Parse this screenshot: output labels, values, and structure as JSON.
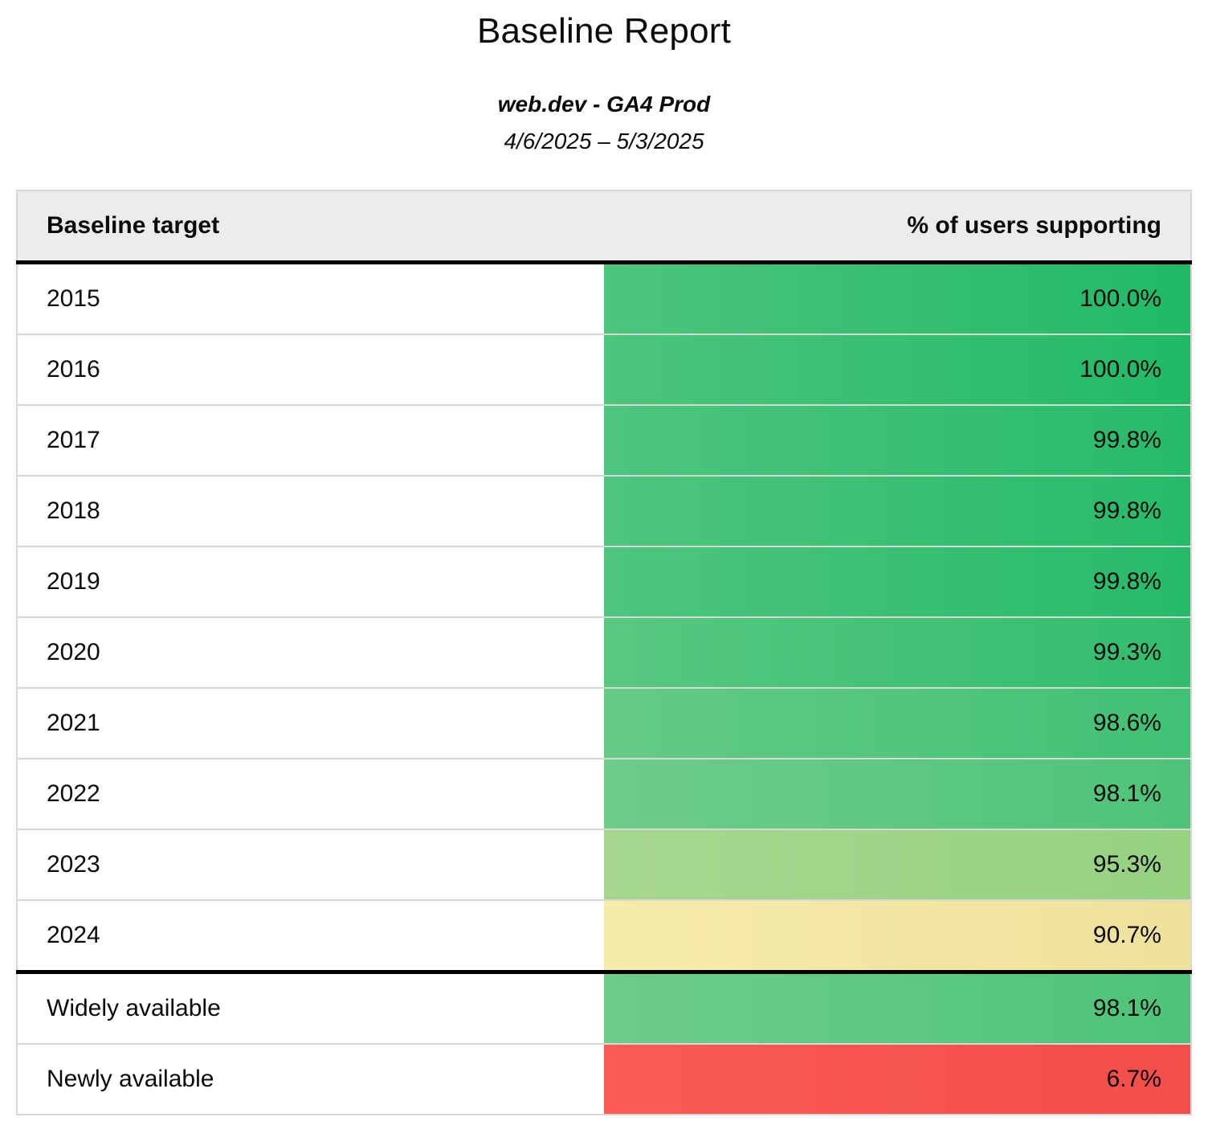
{
  "report": {
    "title": "Baseline Report",
    "subtitle": "web.dev - GA4 Prod",
    "date_range": "4/6/2025 – 5/3/2025"
  },
  "table": {
    "headers": {
      "target": "Baseline target",
      "support": "% of users supporting"
    },
    "rows": [
      {
        "label": "2015",
        "value": "100.0%",
        "value_num": 100.0,
        "color_from": "#4dc57d",
        "color_to": "#20ba66",
        "separator_above": false
      },
      {
        "label": "2016",
        "value": "100.0%",
        "value_num": 100.0,
        "color_from": "#4dc57d",
        "color_to": "#20ba66",
        "separator_above": false
      },
      {
        "label": "2017",
        "value": "99.8%",
        "value_num": 99.8,
        "color_from": "#4fc57e",
        "color_to": "#25bb69",
        "separator_above": false
      },
      {
        "label": "2018",
        "value": "99.8%",
        "value_num": 99.8,
        "color_from": "#4fc57e",
        "color_to": "#25bb69",
        "separator_above": false
      },
      {
        "label": "2019",
        "value": "99.8%",
        "value_num": 99.8,
        "color_from": "#4fc57e",
        "color_to": "#25bb69",
        "separator_above": false
      },
      {
        "label": "2020",
        "value": "99.3%",
        "value_num": 99.3,
        "color_from": "#58c881",
        "color_to": "#31bd6e",
        "separator_above": false
      },
      {
        "label": "2021",
        "value": "98.6%",
        "value_num": 98.6,
        "color_from": "#64cb85",
        "color_to": "#40c175",
        "separator_above": false
      },
      {
        "label": "2022",
        "value": "98.1%",
        "value_num": 98.1,
        "color_from": "#6ecd88",
        "color_to": "#4dc479",
        "separator_above": false
      },
      {
        "label": "2023",
        "value": "95.3%",
        "value_num": 95.3,
        "color_from": "#a7d78f",
        "color_to": "#95d282",
        "separator_above": false
      },
      {
        "label": "2024",
        "value": "90.7%",
        "value_num": 90.7,
        "color_from": "#f7ebac",
        "color_to": "#eee19a",
        "separator_above": false
      },
      {
        "label": "Widely available",
        "value": "98.1%",
        "value_num": 98.1,
        "color_from": "#6ecd88",
        "color_to": "#4dc479",
        "separator_above": true
      },
      {
        "label": "Newly available",
        "value": "6.7%",
        "value_num": 6.7,
        "color_from": "#fa5b53",
        "color_to": "#f34e49",
        "separator_above": false
      }
    ]
  },
  "chart_data": {
    "type": "table",
    "title": "Baseline Report",
    "subtitle": "web.dev - GA4 Prod",
    "date_range": "4/6/2025 – 5/3/2025",
    "columns": [
      "Baseline target",
      "% of users supporting"
    ],
    "rows": [
      [
        "2015",
        100.0
      ],
      [
        "2016",
        100.0
      ],
      [
        "2017",
        99.8
      ],
      [
        "2018",
        99.8
      ],
      [
        "2019",
        99.8
      ],
      [
        "2020",
        99.3
      ],
      [
        "2021",
        98.6
      ],
      [
        "2022",
        98.1
      ],
      [
        "2023",
        95.3
      ],
      [
        "2024",
        90.7
      ],
      [
        "Widely available",
        98.1
      ],
      [
        "Newly available",
        6.7
      ]
    ],
    "color_scale": {
      "high": "#2dbc6c",
      "mid": "#f3e6a4",
      "low": "#f4524c"
    }
  }
}
